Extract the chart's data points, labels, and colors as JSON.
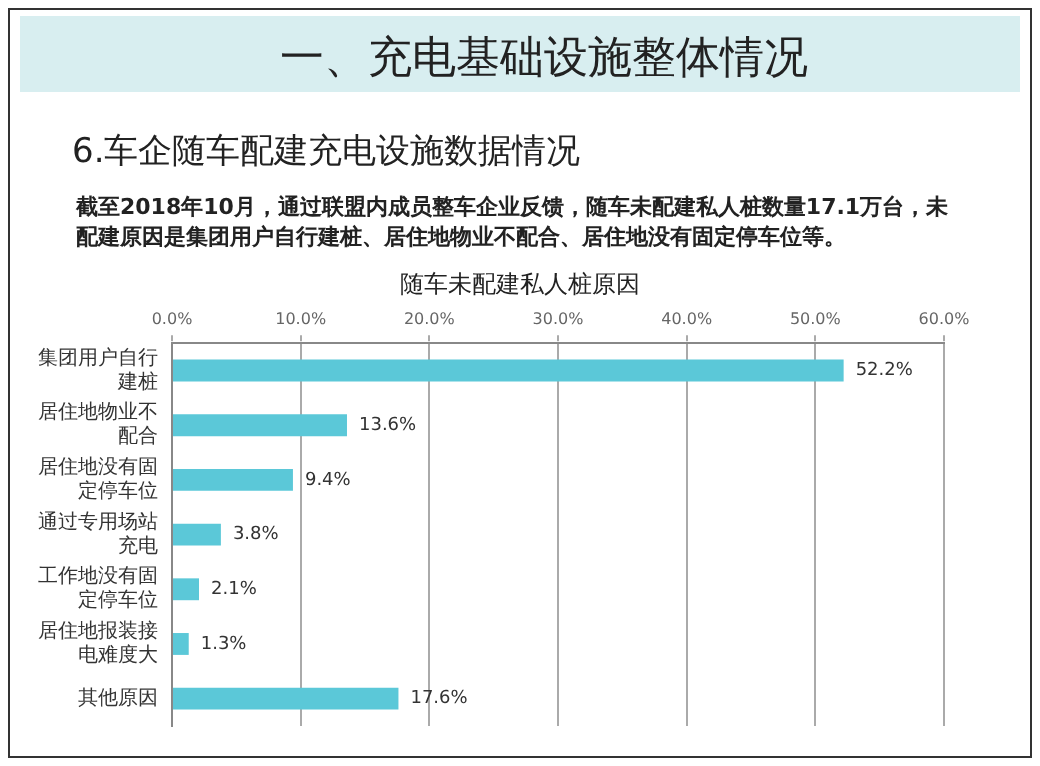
{
  "chart_data": {
    "type": "bar",
    "orientation": "horizontal",
    "title": "随车未配建私人桩原因",
    "subtitle": "6.车企随车配建充电设施数据情况",
    "annotations": [
      "一、充电基础设施整体情况",
      "截至2018年10月，通过联盟内成员整车企业反馈，随车未配建私人桩数量17.1万台，未配建原因是集团用户自行建桩、居住地物业不配合、居住地没有固定停车位等。"
    ],
    "categories": [
      "集团用户自行建桩",
      "居住地物业不配合",
      "居住地没有固定停车位",
      "通过专用场站充电",
      "工作地没有固定停车位",
      "居住地报装接电难度大",
      "其他原因"
    ],
    "values": [
      52.2,
      13.6,
      9.4,
      3.8,
      2.1,
      1.3,
      17.6
    ],
    "value_labels": [
      "52.2%",
      "13.6%",
      "9.4%",
      "3.8%",
      "2.1%",
      "1.3%",
      "17.6%"
    ],
    "color": "#5bc8d8",
    "xlim": [
      0,
      60
    ],
    "xticks": [
      {
        "value": 0,
        "label": "0.0%"
      },
      {
        "value": 10,
        "label": "10.0%"
      },
      {
        "value": 20,
        "label": "20.0%"
      },
      {
        "value": 30,
        "label": "30.0%"
      },
      {
        "value": 40,
        "label": "40.0%"
      },
      {
        "value": 50,
        "label": "50.0%"
      },
      {
        "value": 60,
        "label": "60.0%"
      }
    ],
    "grid": "x",
    "legend": false
  }
}
